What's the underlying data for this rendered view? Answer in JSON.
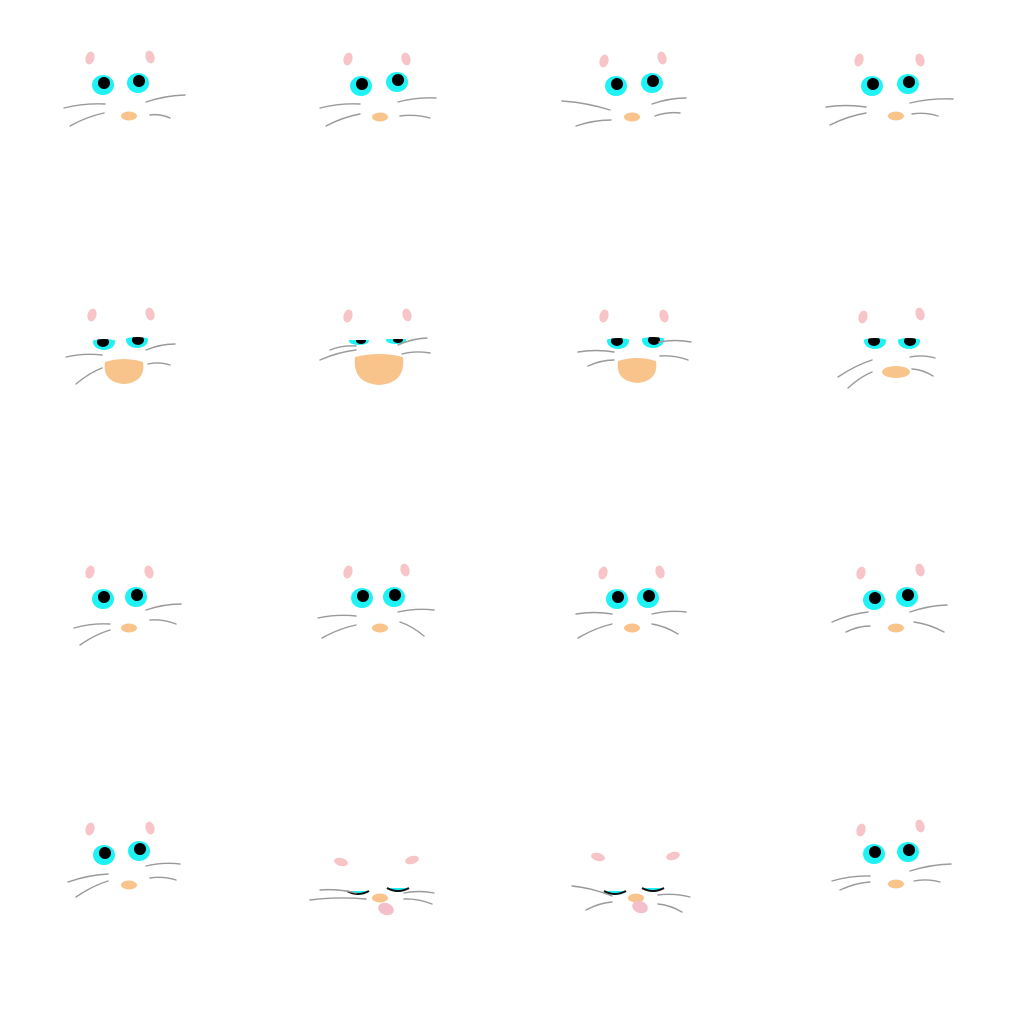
{
  "sheet": {
    "background": "#ffffff",
    "columns": 4,
    "rows": 4
  },
  "palette": {
    "ear": "#f7c4c8",
    "iris": "#1ff2f5",
    "pupil": "#000000",
    "nose": "#f8c48b",
    "whisker": "#9a9a9a",
    "tongue": "#f3bfca",
    "lash": "#111111"
  },
  "frames": [
    {
      "index": 1,
      "row": 1,
      "col": 1,
      "expression": "neutral"
    },
    {
      "index": 2,
      "row": 1,
      "col": 2,
      "expression": "neutral"
    },
    {
      "index": 3,
      "row": 1,
      "col": 3,
      "expression": "neutral"
    },
    {
      "index": 4,
      "row": 1,
      "col": 4,
      "expression": "neutral"
    },
    {
      "index": 5,
      "row": 2,
      "col": 1,
      "expression": "sad-sleepy-big-nose"
    },
    {
      "index": 6,
      "row": 2,
      "col": 2,
      "expression": "squint-big-nose"
    },
    {
      "index": 7,
      "row": 2,
      "col": 3,
      "expression": "sad-sleepy-big-nose"
    },
    {
      "index": 8,
      "row": 2,
      "col": 4,
      "expression": "sad-sleepy"
    },
    {
      "index": 9,
      "row": 3,
      "col": 1,
      "expression": "neutral"
    },
    {
      "index": 10,
      "row": 3,
      "col": 2,
      "expression": "neutral"
    },
    {
      "index": 11,
      "row": 3,
      "col": 3,
      "expression": "neutral"
    },
    {
      "index": 12,
      "row": 3,
      "col": 4,
      "expression": "neutral"
    },
    {
      "index": 13,
      "row": 4,
      "col": 1,
      "expression": "neutral"
    },
    {
      "index": 14,
      "row": 4,
      "col": 2,
      "expression": "closed-eyes-tongue-out"
    },
    {
      "index": 15,
      "row": 4,
      "col": 3,
      "expression": "closed-eyes-tongue-out"
    },
    {
      "index": 16,
      "row": 4,
      "col": 4,
      "expression": "neutral"
    }
  ]
}
